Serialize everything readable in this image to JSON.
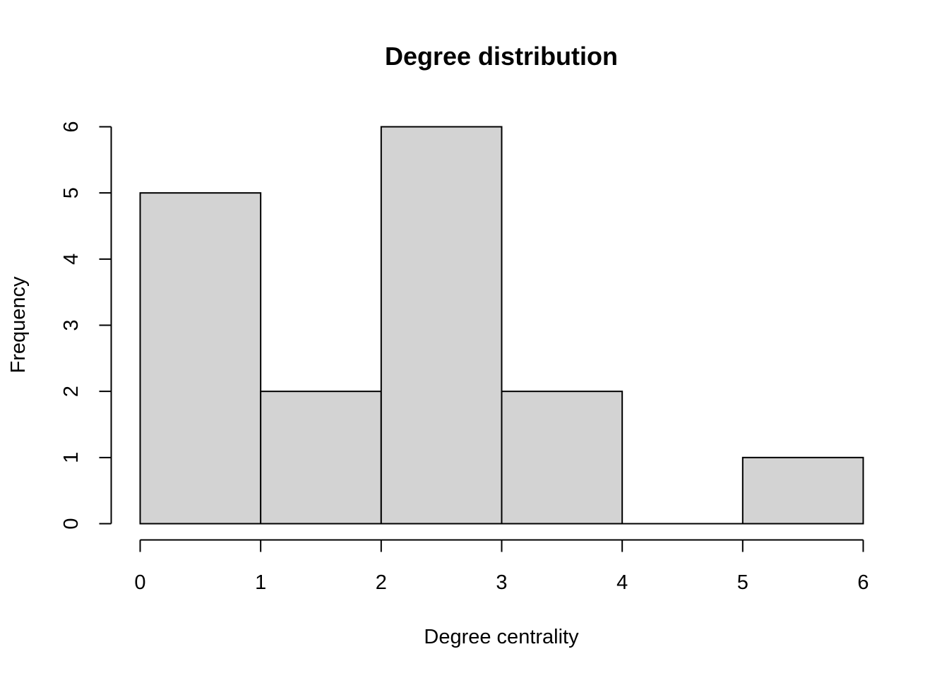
{
  "chart_data": {
    "type": "bar",
    "title": "Degree distribution",
    "xlabel": "Degree centrality",
    "ylabel": "Frequency",
    "bins": [
      {
        "start": 0,
        "end": 1,
        "count": 5
      },
      {
        "start": 1,
        "end": 2,
        "count": 2
      },
      {
        "start": 2,
        "end": 3,
        "count": 6
      },
      {
        "start": 3,
        "end": 4,
        "count": 2
      },
      {
        "start": 4,
        "end": 5,
        "count": 0
      },
      {
        "start": 5,
        "end": 6,
        "count": 1
      }
    ],
    "x_ticks": [
      0,
      1,
      2,
      3,
      4,
      5,
      6
    ],
    "y_ticks": [
      0,
      1,
      2,
      3,
      4,
      5,
      6
    ],
    "xlim": [
      0,
      6
    ],
    "ylim": [
      0,
      6
    ],
    "grid": false,
    "legend": "none",
    "colors": {
      "bar_fill": "#d3d3d3",
      "bar_stroke": "#000000",
      "background": "#ffffff"
    }
  }
}
